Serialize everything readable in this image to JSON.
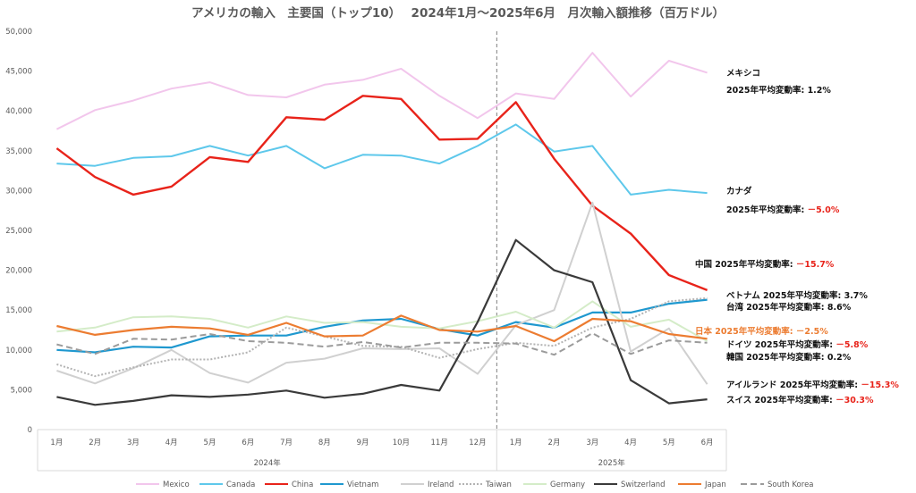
{
  "chart_data": {
    "type": "line",
    "title": "アメリカの輸入　主要国（トップ10）　 2024年1月～2025年6月　月次輸入額推移（百万ドル）",
    "categories": [
      "1月",
      "2月",
      "3月",
      "4月",
      "5月",
      "6月",
      "7月",
      "8月",
      "9月",
      "10月",
      "11月",
      "12月",
      "1月",
      "2月",
      "3月",
      "4月",
      "5月",
      "6月"
    ],
    "year_groups": [
      {
        "label": "2024年",
        "count": 12
      },
      {
        "label": "2025年",
        "count": 6
      }
    ],
    "ylim": [
      0,
      50000
    ],
    "yticks": [
      "0",
      "5,000",
      "10,000",
      "15,000",
      "20,000",
      "25,000",
      "30,000",
      "35,000",
      "40,000",
      "45,000",
      "50,000"
    ],
    "grid": false,
    "legend_position": "bottom",
    "series": [
      {
        "name": "Mexico",
        "color": "#f2c6ec",
        "dash": "",
        "values": [
          37700,
          40100,
          41300,
          42800,
          43600,
          42000,
          41700,
          43300,
          43900,
          45300,
          41900,
          39100,
          42200,
          41500,
          47300,
          41800,
          46300,
          44800
        ]
      },
      {
        "name": "Canada",
        "color": "#5ec8eb",
        "dash": "",
        "values": [
          33400,
          33100,
          34100,
          34300,
          35600,
          34400,
          35600,
          32800,
          34500,
          34400,
          33400,
          35600,
          38300,
          34900,
          35600,
          29500,
          30100,
          29700
        ]
      },
      {
        "name": "China",
        "color": "#e8231a",
        "dash": "",
        "values": [
          35300,
          31700,
          29500,
          30500,
          34200,
          33600,
          39200,
          38900,
          41900,
          41500,
          36400,
          36500,
          41100,
          34000,
          28100,
          24600,
          19400,
          17500
        ]
      },
      {
        "name": "Vietnam",
        "color": "#1f98cf",
        "dash": "",
        "values": [
          10000,
          9700,
          10400,
          10300,
          11700,
          11800,
          11800,
          12900,
          13700,
          13900,
          12600,
          11800,
          13500,
          12800,
          14700,
          14700,
          15800,
          16300
        ]
      },
      {
        "name": "Ireland",
        "color": "#d0d0d0",
        "dash": "",
        "values": [
          7400,
          5800,
          7700,
          10000,
          7100,
          5900,
          8400,
          8900,
          10200,
          10100,
          10200,
          7000,
          13100,
          15000,
          28500,
          9800,
          12700,
          5700
        ]
      },
      {
        "name": "Taiwan",
        "color": "#b3b3b3",
        "dash": "2 2",
        "values": [
          8200,
          6700,
          7800,
          8800,
          8800,
          9700,
          12800,
          11700,
          10500,
          10400,
          9000,
          10100,
          10900,
          10500,
          12800,
          13900,
          16100,
          16500
        ]
      },
      {
        "name": "Germany",
        "color": "#d4ecc8",
        "dash": "",
        "values": [
          12300,
          12800,
          14100,
          14200,
          13900,
          12800,
          14200,
          13400,
          13500,
          12900,
          12700,
          13600,
          14800,
          12800,
          16100,
          12900,
          13800,
          11100
        ]
      },
      {
        "name": "Switzerland",
        "color": "#3a3a3a",
        "dash": "",
        "values": [
          4100,
          3100,
          3600,
          4300,
          4100,
          4400,
          4900,
          4000,
          4500,
          5600,
          4900,
          13500,
          23800,
          20000,
          18500,
          6200,
          3300,
          3800
        ]
      },
      {
        "name": "Japan",
        "color": "#ec7c31",
        "dash": "",
        "values": [
          13000,
          11900,
          12500,
          12900,
          12700,
          11900,
          13400,
          11700,
          11800,
          14300,
          12500,
          12300,
          13000,
          11100,
          13900,
          13600,
          12000,
          11400
        ]
      },
      {
        "name": "South Korea",
        "color": "#9b9b9b",
        "dash": "7 4",
        "values": [
          10700,
          9500,
          11400,
          11300,
          12000,
          11100,
          10900,
          10400,
          11000,
          10300,
          10900,
          10900,
          10800,
          9400,
          12100,
          9500,
          11200,
          10900
        ]
      }
    ],
    "annotations": [
      {
        "label": "メキシコ",
        "rate_prefix": "",
        "rate": "",
        "color": "black"
      },
      {
        "label": "2025年平均変動率: ",
        "rate_prefix": "",
        "rate": "1.2%",
        "color": "black"
      },
      {
        "label": "カナダ",
        "rate_prefix": "",
        "rate": "",
        "color": "black"
      },
      {
        "label": "2025年平均変動率: ",
        "rate_prefix": "",
        "rate": "－5.0%",
        "color": "red"
      },
      {
        "label": "中国 2025年平均変動率: ",
        "rate_prefix": "",
        "rate": "－15.7%",
        "color": "red"
      },
      {
        "label": "ベトナム 2025年平均変動率: ",
        "rate_prefix": "",
        "rate": "3.7%",
        "color": "black"
      },
      {
        "label": "台湾 2025年平均変動率: ",
        "rate_prefix": "",
        "rate": "8.6%",
        "color": "black"
      },
      {
        "label": "日本 2025年平均変動率: ",
        "rate_prefix": "",
        "rate": "－2.5%",
        "color": "orange"
      },
      {
        "label": "ドイツ 2025年平均変動率: ",
        "rate_prefix": "",
        "rate": "－5.8%",
        "color": "red"
      },
      {
        "label": "韓国 2025年平均変動率: ",
        "rate_prefix": "",
        "rate": "0.2%",
        "color": "black"
      },
      {
        "label": "アイルランド 2025年平均変動率: ",
        "rate_prefix": "",
        "rate": "－15.3%",
        "color": "red"
      },
      {
        "label": "スイス 2025年平均変動率: ",
        "rate_prefix": "",
        "rate": "－30.3%",
        "color": "red"
      }
    ]
  }
}
